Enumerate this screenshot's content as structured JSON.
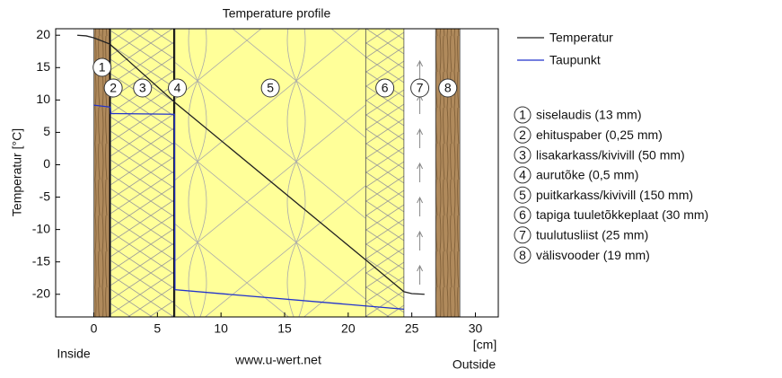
{
  "chart_data": {
    "type": "line",
    "title": "Temperature profile",
    "y_label": "Temperatur [°C]",
    "x_unit": "[cm]",
    "inside_label": "Inside",
    "outside_label": "Outside",
    "source": "www.u-wert.net",
    "xlim": [
      -3,
      31.8
    ],
    "ylim": [
      -23.5,
      21
    ],
    "xticks": [
      0,
      5,
      10,
      15,
      20,
      25,
      30
    ],
    "yticks": [
      -20,
      -15,
      -10,
      -5,
      0,
      5,
      10,
      15,
      20
    ],
    "grid": false,
    "legend": "right",
    "series": [
      {
        "name": "Temperatur",
        "color": "#222222",
        "x": [
          -1.3,
          -0.6,
          0,
          1.3,
          1.33,
          6.33,
          6.38,
          21.38,
          24.38,
          25,
          26
        ],
        "values": [
          20,
          19.9,
          19.6,
          18.6,
          18.5,
          9.7,
          9.6,
          -14.7,
          -19.6,
          -19.9,
          -20
        ]
      },
      {
        "name": "Taupunkt",
        "color": "#2233cc",
        "x": [
          0,
          1.3,
          1.33,
          6.33,
          6.38,
          24.38
        ],
        "values": [
          9.2,
          8.9,
          7.9,
          7.8,
          -19.3,
          -22.3
        ]
      }
    ],
    "layers": [
      {
        "number": "1",
        "label": "siselaudis (13 mm)",
        "x": [
          0,
          1.3
        ],
        "material": "wood"
      },
      {
        "number": "2",
        "label": "ehituspaber (0,25 mm)",
        "x": [
          1.3,
          1.33
        ],
        "material": "membrane"
      },
      {
        "number": "3",
        "label": "lisakarkass/kivivill (50 mm)",
        "x": [
          1.33,
          6.33
        ],
        "material": "wool"
      },
      {
        "number": "4",
        "label": "aurutõke (0,5 mm)",
        "x": [
          6.33,
          6.38
        ],
        "material": "membrane"
      },
      {
        "number": "5",
        "label": "puitkarkass/kivivill (150 mm)",
        "x": [
          6.38,
          21.38
        ],
        "material": "wool2"
      },
      {
        "number": "6",
        "label": "tapiga tuuletõkkeplaat (30 mm)",
        "x": [
          21.38,
          24.38
        ],
        "material": "wool"
      },
      {
        "number": "7",
        "label": "tuulutusliist (25 mm)",
        "x": [
          24.38,
          26.88
        ],
        "material": "air"
      },
      {
        "number": "8",
        "label": "välisvooder (19 mm)",
        "x": [
          26.88,
          28.78
        ],
        "material": "wood"
      }
    ]
  }
}
